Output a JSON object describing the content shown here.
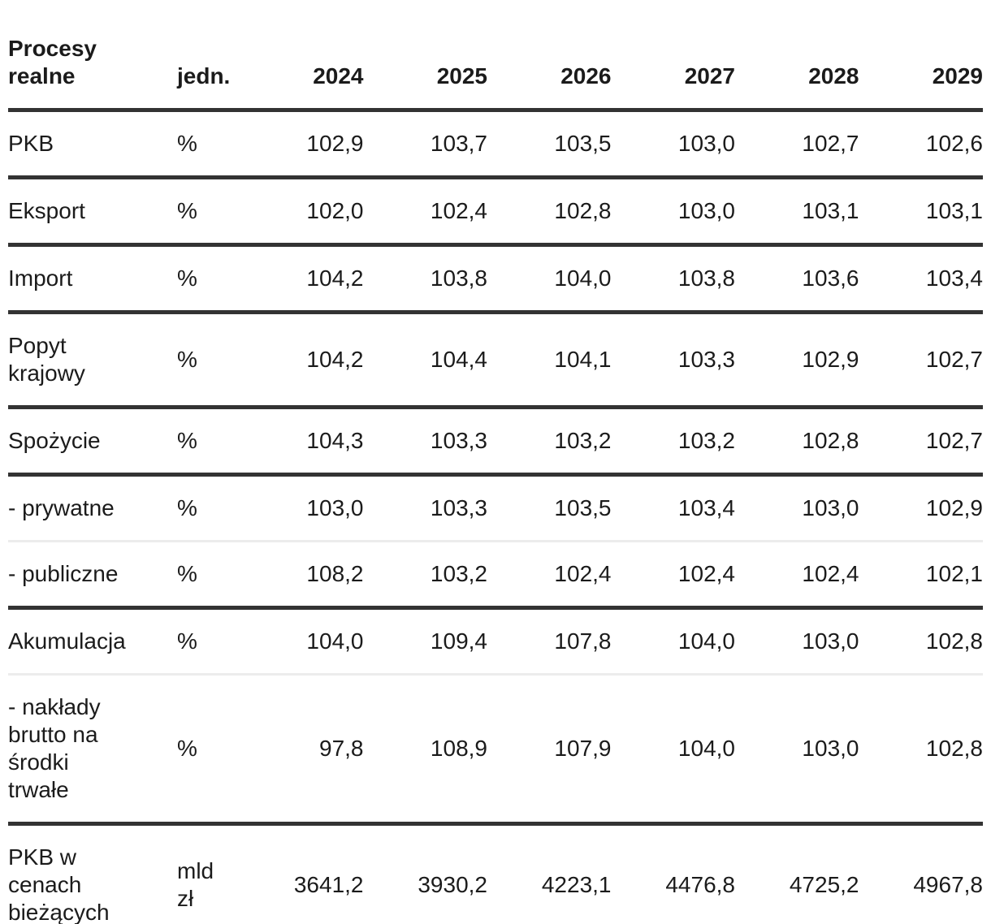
{
  "colors": {
    "text": "#1b1b1b",
    "dark_rule": "#333333",
    "light_rule": "#ececec",
    "background": "#ffffff"
  },
  "table": {
    "title_header": "Procesy\nrealne",
    "unit_header": "jedn.",
    "year_headers": [
      "2024",
      "2025",
      "2026",
      "2027",
      "2028",
      "2029"
    ],
    "rows": [
      {
        "label": "PKB",
        "unit": "%",
        "values": [
          "102,9",
          "103,7",
          "103,5",
          "103,0",
          "102,7",
          "102,6"
        ],
        "divider": "dark"
      },
      {
        "label": "Eksport",
        "unit": "%",
        "values": [
          "102,0",
          "102,4",
          "102,8",
          "103,0",
          "103,1",
          "103,1"
        ],
        "divider": "dark"
      },
      {
        "label": "Import",
        "unit": "%",
        "values": [
          "104,2",
          "103,8",
          "104,0",
          "103,8",
          "103,6",
          "103,4"
        ],
        "divider": "dark"
      },
      {
        "label": "Popyt\nkrajowy",
        "unit": "%",
        "values": [
          "104,2",
          "104,4",
          "104,1",
          "103,3",
          "102,9",
          "102,7"
        ],
        "divider": "dark"
      },
      {
        "label": "Spożycie",
        "unit": "%",
        "values": [
          "104,3",
          "103,3",
          "103,2",
          "103,2",
          "102,8",
          "102,7"
        ],
        "divider": "dark"
      },
      {
        "label": "- prywatne",
        "unit": "%",
        "values": [
          "103,0",
          "103,3",
          "103,5",
          "103,4",
          "103,0",
          "102,9"
        ],
        "divider": "light"
      },
      {
        "label": "- publiczne",
        "unit": "%",
        "values": [
          "108,2",
          "103,2",
          "102,4",
          "102,4",
          "102,4",
          "102,1"
        ],
        "divider": "dark"
      },
      {
        "label": "Akumulacja",
        "unit": "%",
        "values": [
          "104,0",
          "109,4",
          "107,8",
          "104,0",
          "103,0",
          "102,8"
        ],
        "divider": "light"
      },
      {
        "label": "- nakłady\nbrutto na\nśrodki\ntrwałe",
        "unit": "%",
        "values": [
          "97,8",
          "108,9",
          "107,9",
          "104,0",
          "103,0",
          "102,8"
        ],
        "divider": "dark"
      },
      {
        "label": "PKB w\ncenach\nbieżących",
        "unit": "mld\nzł",
        "values": [
          "3641,2",
          "3930,2",
          "4223,1",
          "4476,8",
          "4725,2",
          "4967,8"
        ],
        "divider": "dark"
      }
    ]
  }
}
